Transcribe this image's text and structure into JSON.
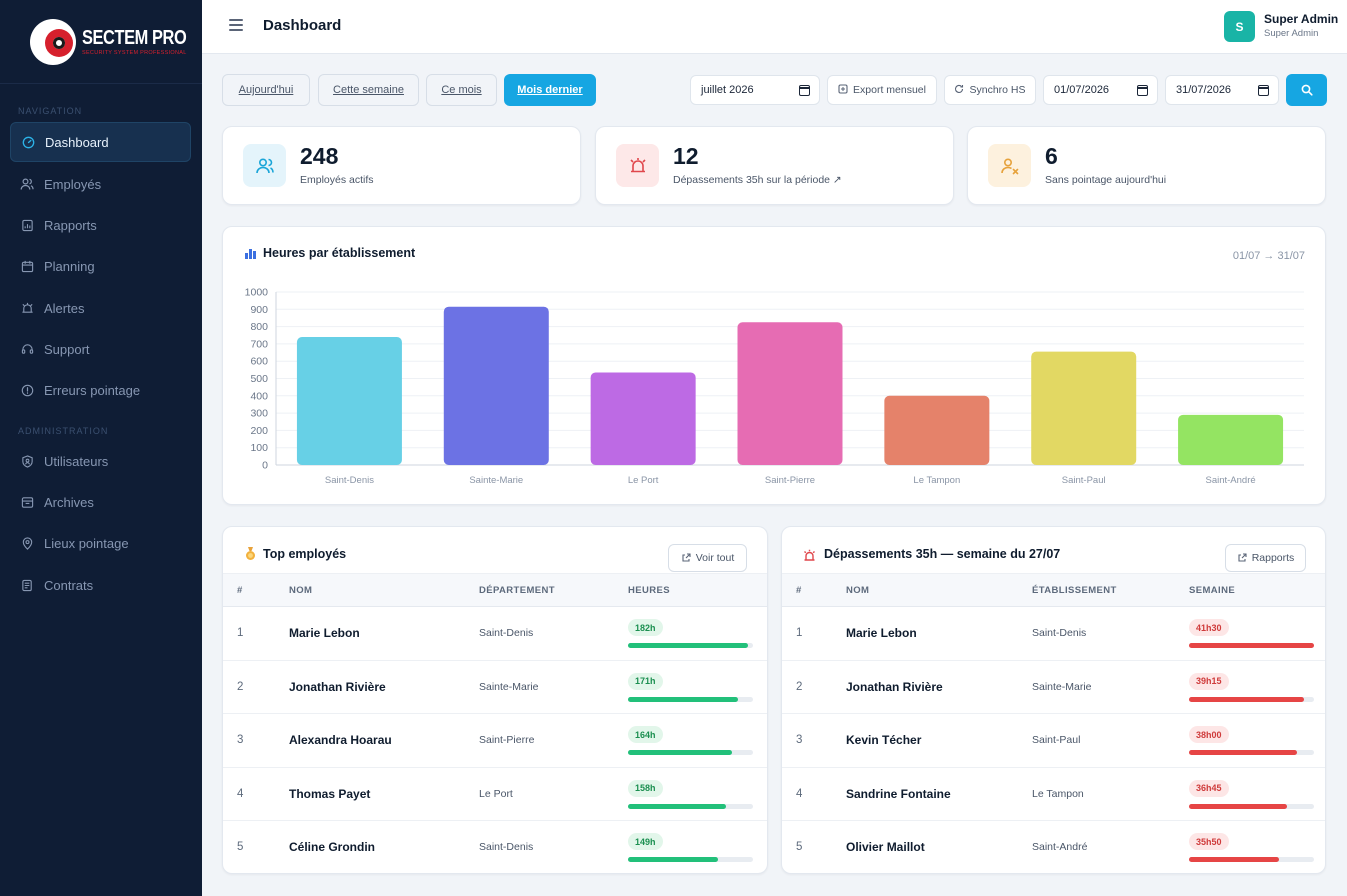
{
  "brand": {
    "name": "SECTEM PRO",
    "tagline": "SECURITY SYSTEM PROFESSIONAL"
  },
  "sidebar": {
    "sections": [
      {
        "label": "NAVIGATION"
      },
      {
        "label": "ADMINISTRATION"
      }
    ],
    "items": [
      {
        "label": "Dashboard",
        "icon": "dashboard-icon",
        "active": true
      },
      {
        "label": "Employés",
        "icon": "users-icon"
      },
      {
        "label": "Rapports",
        "icon": "report-icon"
      },
      {
        "label": "Planning",
        "icon": "calendar-icon"
      },
      {
        "label": "Alertes",
        "icon": "alarm-icon"
      },
      {
        "label": "Support",
        "icon": "headset-icon"
      },
      {
        "label": "Erreurs pointage",
        "icon": "alert-circle-icon"
      },
      {
        "label": "Utilisateurs",
        "icon": "shield-user-icon"
      },
      {
        "label": "Archives",
        "icon": "archive-icon"
      },
      {
        "label": "Lieux pointage",
        "icon": "map-pin-icon"
      },
      {
        "label": "Contrats",
        "icon": "contract-icon"
      }
    ]
  },
  "header": {
    "title": "Dashboard",
    "user": {
      "initial": "S",
      "name": "Super Admin",
      "role": "Super Admin"
    }
  },
  "filters": {
    "periods": [
      "Aujourd'hui",
      "Cette semaine",
      "Ce mois",
      "Mois dernier"
    ],
    "active_period": "Mois dernier",
    "month": "juillet 2026",
    "export_label": "Export mensuel",
    "sync_label": "Synchro HS",
    "date_from": "01/07/2026",
    "date_to": "31/07/2026"
  },
  "stats": [
    {
      "value": "248",
      "label": "Employés actifs",
      "icon": "users-icon",
      "color": "#1aa5d8",
      "bg": "#e4f4fb"
    },
    {
      "value": "12",
      "label": "Dépassements 35h sur la période ↗",
      "icon": "alarm-icon",
      "color": "#e0474c",
      "bg": "#fde8e8"
    },
    {
      "value": "6",
      "label": "Sans pointage aujourd'hui",
      "icon": "user-x-icon",
      "color": "#e6a23c",
      "bg": "#fdf1de"
    }
  ],
  "chart": {
    "title": "Heures par établissement",
    "range": "01/07 → 31/07"
  },
  "chart_data": {
    "type": "bar",
    "title": "Heures par établissement",
    "categories": [
      "Saint-Denis",
      "Sainte-Marie",
      "Le Port",
      "Saint-Pierre",
      "Le Tampon",
      "Saint-Paul",
      "Saint-André"
    ],
    "values": [
      740,
      915,
      535,
      825,
      400,
      655,
      290
    ],
    "colors": [
      "#67d0e6",
      "#6c72e4",
      "#bd6ae4",
      "#e66cb3",
      "#e5826a",
      "#e2d863",
      "#94e462"
    ],
    "ylim": [
      0,
      1000
    ],
    "yticks": [
      0,
      100,
      200,
      300,
      400,
      500,
      600,
      700,
      800,
      900,
      1000
    ],
    "grid": true,
    "xlabel": "",
    "ylabel": ""
  },
  "top_employees": {
    "title": "Top employés",
    "button": "Voir tout",
    "columns": [
      "#",
      "NOM",
      "DÉPARTEMENT",
      "HEURES"
    ],
    "rows": [
      {
        "rank": "1",
        "name": "Marie Lebon",
        "dept": "Saint-Denis",
        "value": "182h",
        "fill": 0.96
      },
      {
        "rank": "2",
        "name": "Jonathan Rivière",
        "dept": "Sainte-Marie",
        "value": "171h",
        "fill": 0.88
      },
      {
        "rank": "3",
        "name": "Alexandra Hoarau",
        "dept": "Saint-Pierre",
        "value": "164h",
        "fill": 0.83
      },
      {
        "rank": "4",
        "name": "Thomas Payet",
        "dept": "Le Port",
        "value": "158h",
        "fill": 0.78
      },
      {
        "rank": "5",
        "name": "Céline Grondin",
        "dept": "Saint-Denis",
        "value": "149h",
        "fill": 0.72
      }
    ]
  },
  "overtime": {
    "title": "Dépassements 35h — semaine du 27/07",
    "button": "Rapports",
    "columns": [
      "#",
      "NOM",
      "ÉTABLISSEMENT",
      "SEMAINE"
    ],
    "rows": [
      {
        "rank": "1",
        "name": "Marie Lebon",
        "dept": "Saint-Denis",
        "value": "41h30",
        "fill": 1.0
      },
      {
        "rank": "2",
        "name": "Jonathan Rivière",
        "dept": "Sainte-Marie",
        "value": "39h15",
        "fill": 0.92
      },
      {
        "rank": "3",
        "name": "Kevin Técher",
        "dept": "Saint-Paul",
        "value": "38h00",
        "fill": 0.86
      },
      {
        "rank": "4",
        "name": "Sandrine Fontaine",
        "dept": "Le Tampon",
        "value": "36h45",
        "fill": 0.78
      },
      {
        "rank": "5",
        "name": "Olivier Maillot",
        "dept": "Saint-André",
        "value": "35h50",
        "fill": 0.72
      }
    ]
  },
  "colors": {
    "accent": "#16a6e2",
    "sidebar": "#0f1d35",
    "success": "#22c07a",
    "danger": "#e64545"
  }
}
